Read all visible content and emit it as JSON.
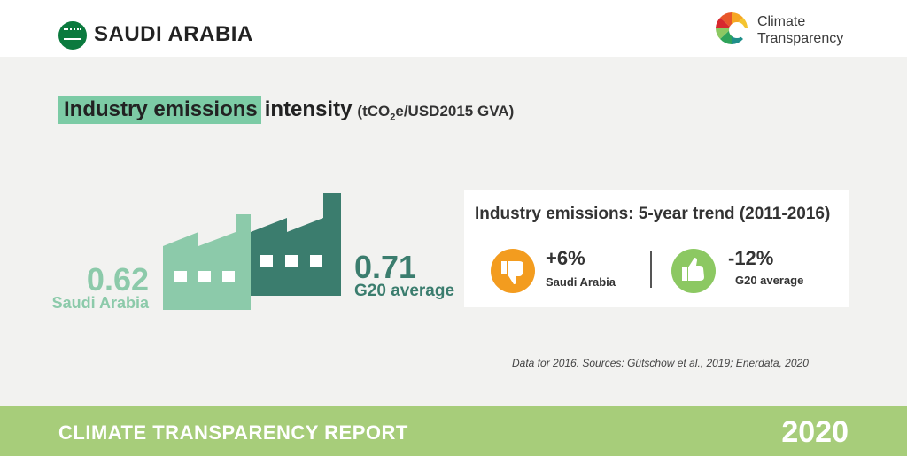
{
  "header": {
    "country": "SAUDI ARABIA",
    "logo_line1": "Climate",
    "logo_line2": "Transparency"
  },
  "title": {
    "highlight": "Industry emissions",
    "rest": "intensity",
    "unit_prefix": "(tCO",
    "unit_sub": "2",
    "unit_suffix": "e/USD2015 GVA)"
  },
  "comparison": {
    "saudi_value": "0.62",
    "saudi_label": "Saudi Arabia",
    "g20_value": "0.71",
    "g20_label": "G20 average"
  },
  "trend": {
    "title": "Industry emissions: 5-year trend (2011-2016)",
    "saudi": {
      "value": "+6%",
      "label": "Saudi Arabia",
      "icon": "thumbs-down-icon"
    },
    "g20": {
      "value": "-12%",
      "label": "G20 average",
      "icon": "thumbs-up-icon"
    }
  },
  "source": "Data for 2016. Sources: Gütschow et al., 2019; Enerdata, 2020",
  "footer": {
    "report": "CLIMATE TRANSPARENCY REPORT",
    "year": "2020"
  },
  "colors": {
    "saudi": "#8ccaaa",
    "g20": "#3b7d6e",
    "highlight": "#7ccba5",
    "footer": "#a7cd7a",
    "negative_trend": "#f39c1f",
    "positive_trend": "#8cc862"
  }
}
